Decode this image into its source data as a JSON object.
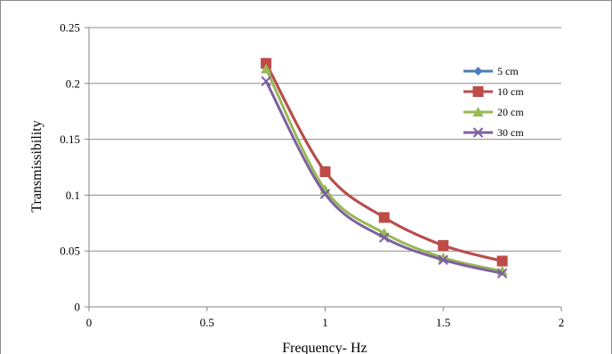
{
  "chart_data": {
    "type": "line",
    "title": "",
    "xlabel": "Frequency- Hz",
    "ylabel": "Transmissibility",
    "xlim": [
      0,
      2
    ],
    "ylim": [
      0,
      0.25
    ],
    "x_ticks": [
      "0",
      "0.5",
      "1",
      "1.5",
      "2"
    ],
    "y_ticks": [
      "0",
      "0.05",
      "0.1",
      "0.15",
      "0.2",
      "0.25"
    ],
    "x_tick_values": [
      0,
      0.5,
      1,
      1.5,
      2
    ],
    "y_tick_values": [
      0,
      0.05,
      0.1,
      0.15,
      0.2,
      0.25
    ],
    "grid": "horizontal",
    "legend_position": "top-right",
    "x": [
      0.75,
      1.0,
      1.25,
      1.5,
      1.75
    ],
    "series": [
      {
        "name": "5 cm",
        "color": "#4a7ebb",
        "marker": "diamond",
        "values": [
          0.218,
          0.121,
          0.08,
          0.055,
          0.041
        ]
      },
      {
        "name": "10 cm",
        "color": "#be4b48",
        "marker": "square",
        "values": [
          0.218,
          0.121,
          0.08,
          0.055,
          0.041
        ]
      },
      {
        "name": "20 cm",
        "color": "#98b954",
        "marker": "triangle",
        "values": [
          0.213,
          0.105,
          0.066,
          0.044,
          0.032
        ]
      },
      {
        "name": "30 cm",
        "color": "#7d60a0",
        "marker": "x",
        "values": [
          0.202,
          0.101,
          0.062,
          0.042,
          0.03
        ]
      }
    ]
  }
}
